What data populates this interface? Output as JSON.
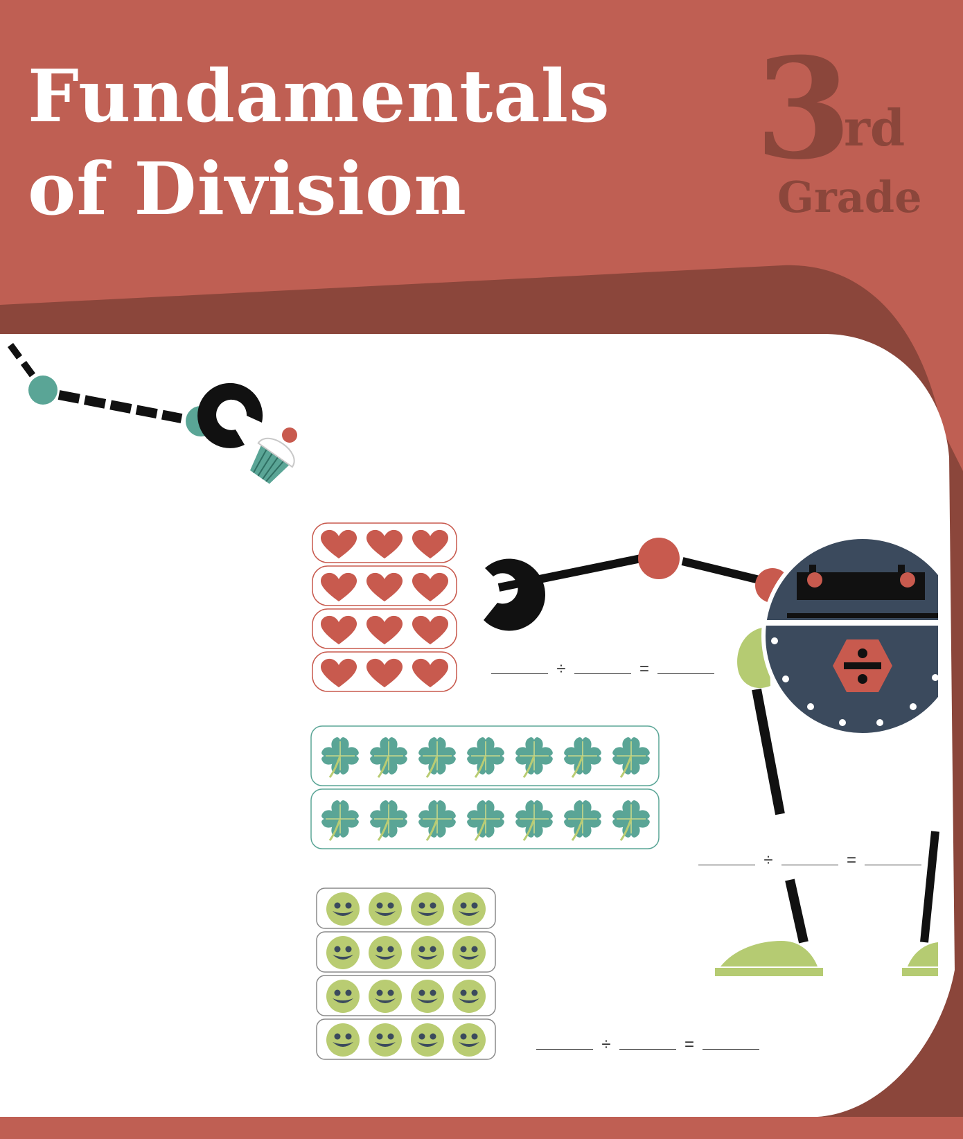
{
  "header": {
    "title_line1": "Fundamentals",
    "title_line2": "of Division",
    "grade_number": "3",
    "grade_suffix": "rd",
    "grade_word": "Grade"
  },
  "colors": {
    "header_red": "#bf5f53",
    "dark_red": "#8b463b",
    "heart": "#c85a4e",
    "clover": "#5aa596",
    "smiley": "#b9cc72",
    "robot_body": "#3b4a5d",
    "robot_green": "#b5cb72"
  },
  "problems": [
    {
      "name": "hearts",
      "icon": "heart-icon",
      "rows": 4,
      "per_row": 3
    },
    {
      "name": "clovers",
      "icon": "clover-icon",
      "rows": 2,
      "per_row": 7
    },
    {
      "name": "smileys",
      "icon": "smiley-icon",
      "rows": 4,
      "per_row": 4
    }
  ],
  "equation": {
    "divide_symbol": "÷",
    "equals_symbol": "="
  }
}
